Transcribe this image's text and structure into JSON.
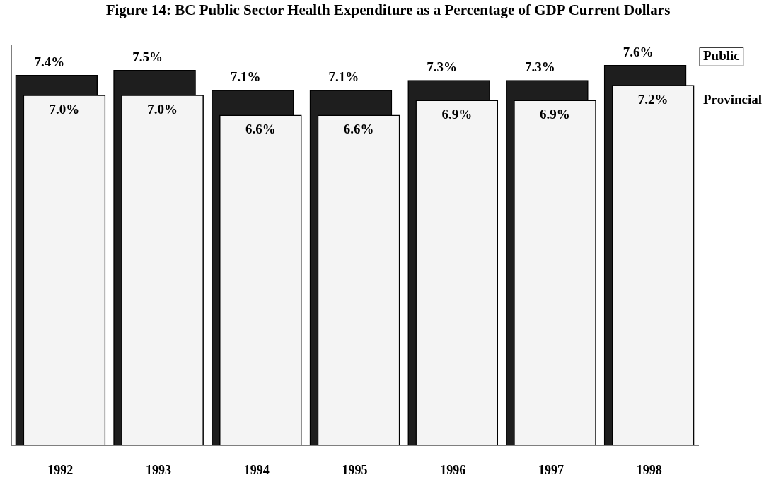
{
  "chart_data": {
    "type": "bar",
    "title": "Figure 14: BC Public Sector Health Expenditure as a Percentage of GDP Current Dollars",
    "categories": [
      "1992",
      "1993",
      "1994",
      "1995",
      "1996",
      "1997",
      "1998"
    ],
    "series": [
      {
        "name": "Public",
        "color": "#1e1e1e",
        "values": [
          7.4,
          7.5,
          7.1,
          7.1,
          7.3,
          7.3,
          7.6
        ],
        "value_labels": [
          "7.4%",
          "7.5%",
          "7.1%",
          "7.1%",
          "7.3%",
          "7.3%",
          "7.6%"
        ]
      },
      {
        "name": "Provincial",
        "color": "#f4f4f4",
        "values": [
          7.0,
          7.0,
          6.6,
          6.6,
          6.9,
          6.9,
          7.2
        ],
        "value_labels": [
          "7.0%",
          "7.0%",
          "6.6%",
          "6.6%",
          "6.9%",
          "6.9%",
          "7.2%"
        ]
      }
    ],
    "tick_labels": "x",
    "grid": false
  }
}
